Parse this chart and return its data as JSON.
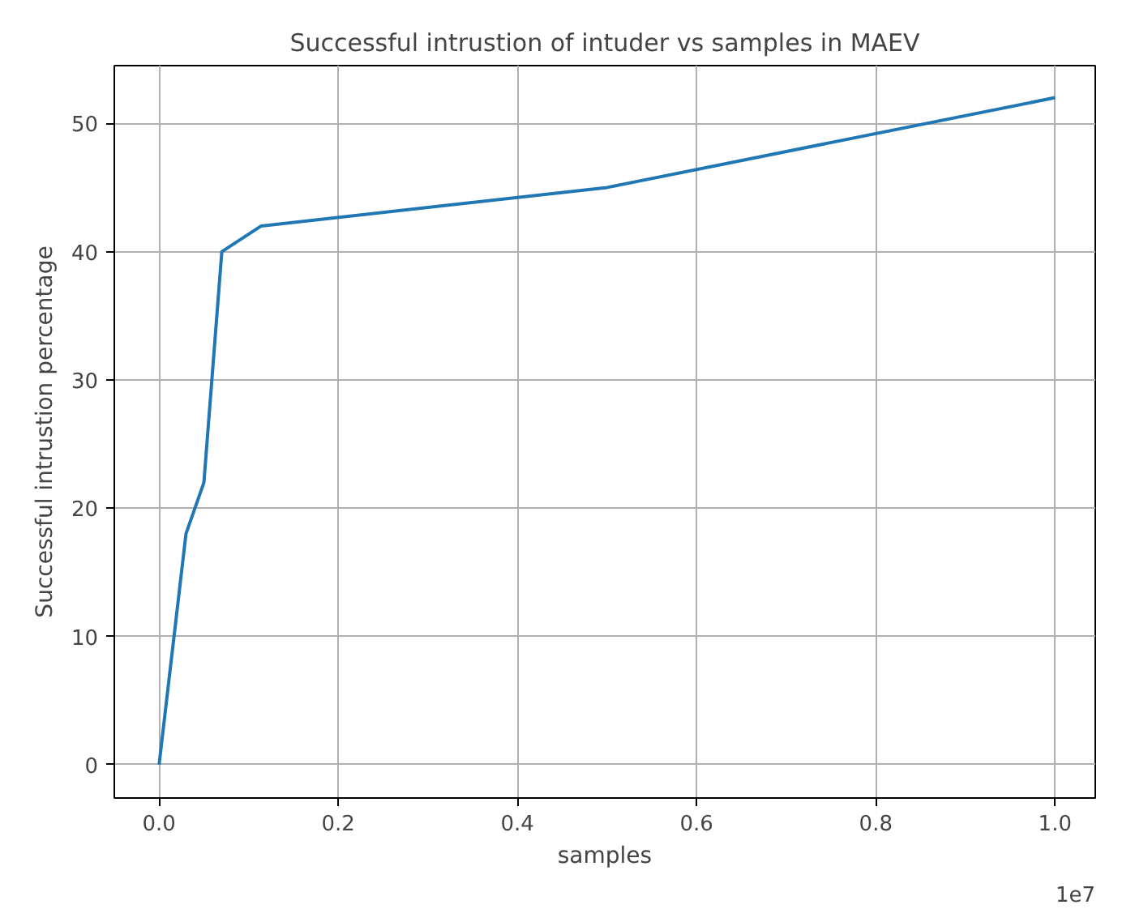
{
  "chart_data": {
    "type": "line",
    "title": "Successful intrustion of intuder vs samples in MAEV",
    "xlabel": "samples",
    "ylabel": "Successful intrustion percentage",
    "x": [
      0,
      0.03,
      0.05,
      0.07,
      0.114,
      0.5,
      1.0
    ],
    "series": [
      {
        "color": "#1f77b4",
        "values": [
          0,
          18,
          22,
          40,
          42,
          45,
          52
        ]
      }
    ],
    "xlim": [
      -0.05,
      1.045
    ],
    "ylim": [
      -2.6,
      54.5
    ],
    "xticks": [
      {
        "value": 0,
        "label": "0.0"
      },
      0.2,
      0.4,
      0.6,
      0.8,
      {
        "value": 1,
        "label": "1.0"
      }
    ],
    "yticks": [
      0,
      10,
      20,
      30,
      40,
      50
    ],
    "annotations": [
      "1e7"
    ],
    "grid": true,
    "line_style": "solid"
  }
}
